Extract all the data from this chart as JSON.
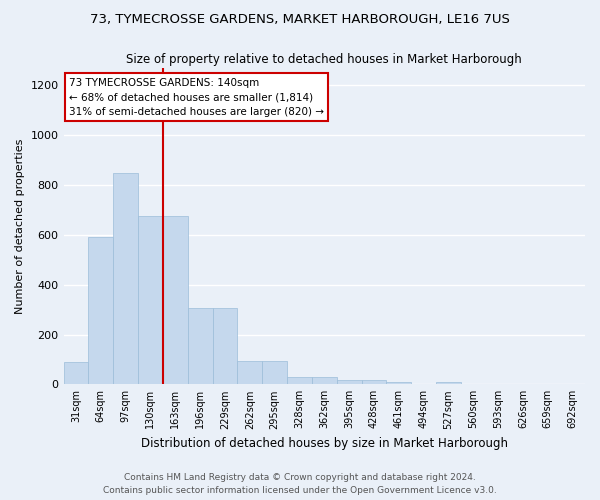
{
  "title": "73, TYMECROSSE GARDENS, MARKET HARBOROUGH, LE16 7US",
  "subtitle": "Size of property relative to detached houses in Market Harborough",
  "xlabel": "Distribution of detached houses by size in Market Harborough",
  "ylabel": "Number of detached properties",
  "footer_line1": "Contains HM Land Registry data © Crown copyright and database right 2024.",
  "footer_line2": "Contains public sector information licensed under the Open Government Licence v3.0.",
  "bin_labels": [
    "31sqm",
    "64sqm",
    "97sqm",
    "130sqm",
    "163sqm",
    "196sqm",
    "229sqm",
    "262sqm",
    "295sqm",
    "328sqm",
    "362sqm",
    "395sqm",
    "428sqm",
    "461sqm",
    "494sqm",
    "527sqm",
    "560sqm",
    "593sqm",
    "626sqm",
    "659sqm",
    "692sqm"
  ],
  "bar_values": [
    90,
    590,
    850,
    675,
    675,
    305,
    305,
    95,
    95,
    28,
    28,
    18,
    18,
    9,
    0,
    9,
    0,
    0,
    0,
    0,
    0
  ],
  "bar_color": "#c5d8ed",
  "bar_edge_color": "#9bbdd9",
  "bg_color": "#eaf0f8",
  "grid_color": "#ffffff",
  "vline_color": "#cc0000",
  "vline_x": 3.5,
  "annotation_text": "73 TYMECROSSE GARDENS: 140sqm\n← 68% of detached houses are smaller (1,814)\n31% of semi-detached houses are larger (820) →",
  "annotation_box_color": "#ffffff",
  "annotation_box_edge_color": "#cc0000",
  "ylim": [
    0,
    1270
  ],
  "yticks": [
    0,
    200,
    400,
    600,
    800,
    1000,
    1200
  ]
}
